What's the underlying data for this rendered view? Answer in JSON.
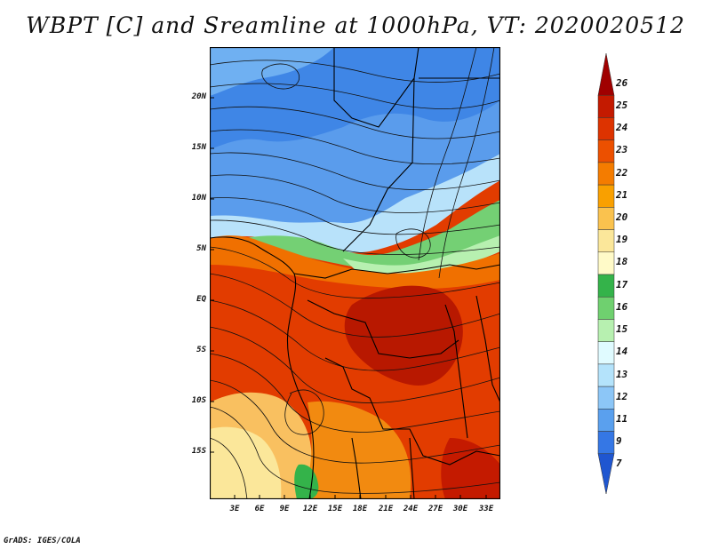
{
  "title": "WBPT [C] and Sreamline at 1000hPa, VT: 2020020512",
  "credit": "GrADS: IGES/COLA",
  "lat_ticks": [
    "20N",
    "15N",
    "10N",
    "5N",
    "EQ",
    "5S",
    "10S",
    "15S"
  ],
  "lon_ticks": [
    "3E",
    "6E",
    "9E",
    "12E",
    "15E",
    "18E",
    "21E",
    "24E",
    "27E",
    "30E",
    "33E"
  ],
  "colorbar": {
    "labels": [
      "26",
      "25",
      "24",
      "23",
      "22",
      "21",
      "20",
      "19",
      "18",
      "17",
      "16",
      "15",
      "14",
      "13",
      "12",
      "11",
      "9",
      "7"
    ],
    "colors": [
      "#a00000",
      "#c41a00",
      "#dd3300",
      "#ec5000",
      "#f47c00",
      "#f9a000",
      "#fac24e",
      "#fbe79a",
      "#fffac8",
      "#34b34a",
      "#6fd06f",
      "#b7f0b0",
      "#e0fbff",
      "#b4e3fb",
      "#8cc6f7",
      "#5aa0ee",
      "#3577e5",
      "#1f56d0"
    ]
  },
  "colors": {
    "frame": "#000000",
    "streamline": "#111111"
  }
}
